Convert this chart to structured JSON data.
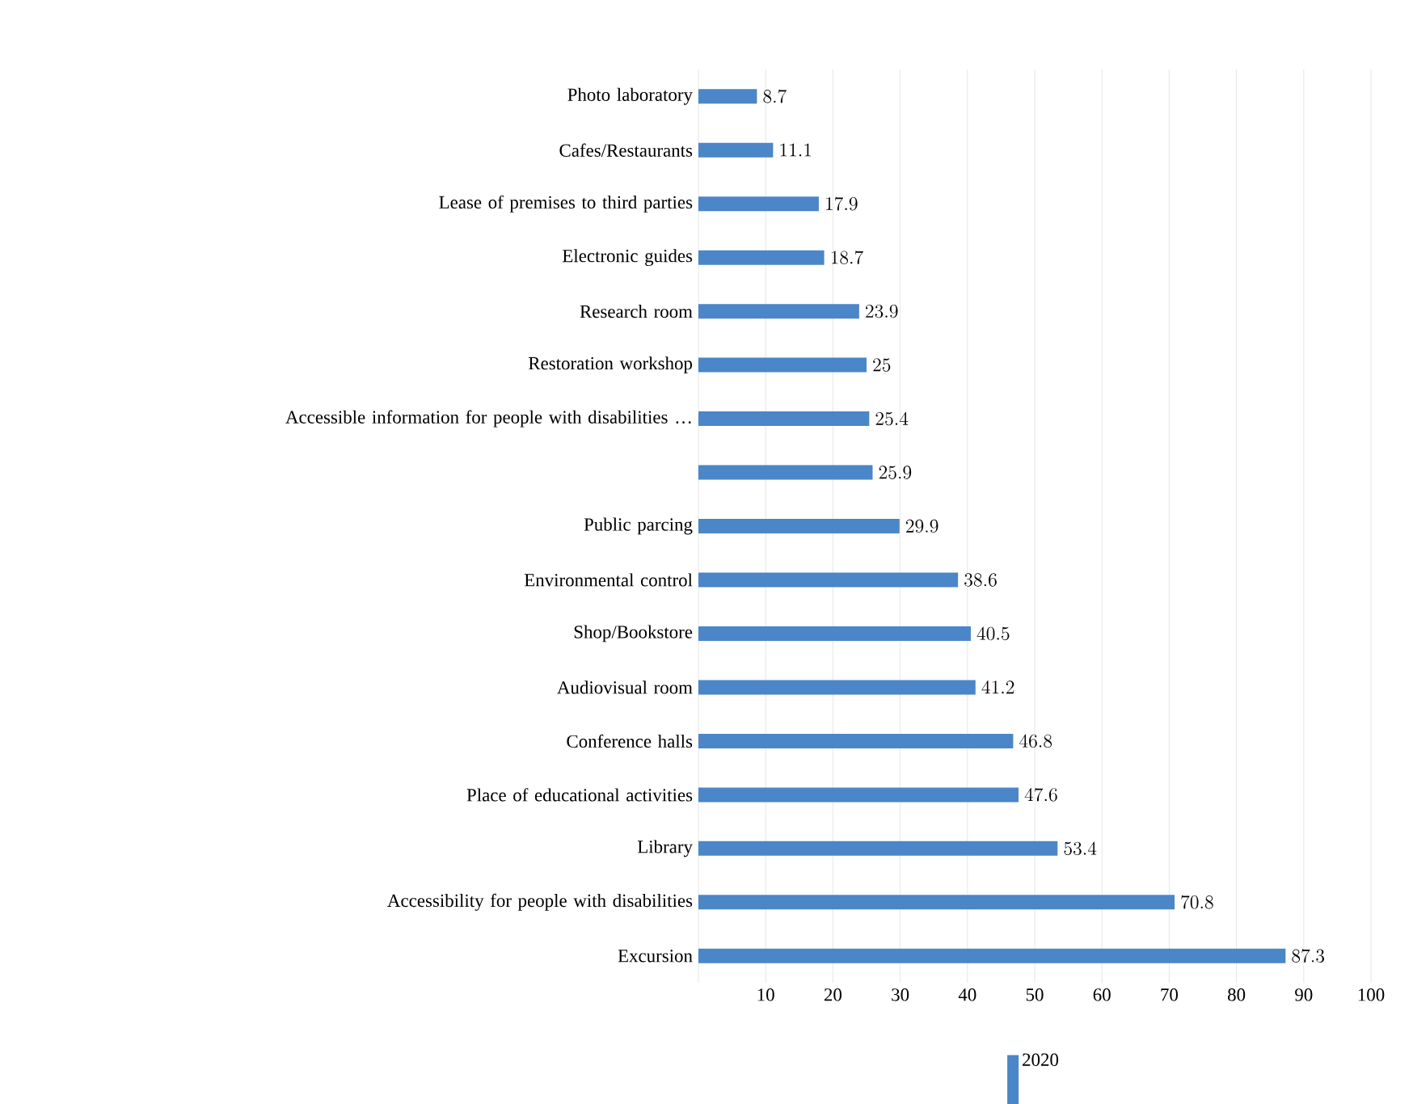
{
  "chart_data": {
    "type": "bar",
    "orientation": "horizontal",
    "categories": [
      "Photo laboratory",
      "Cafes/Restaurants",
      "Lease of premises to third parties",
      "Electronic guides",
      "Research room",
      "Restoration workshop",
      "Accessible information for people with disabilities …",
      null,
      "Public parcing",
      "Environmental control",
      "Shop/Bookstore",
      "Audiovisual room",
      "Conference halls",
      "Place of educational activities",
      "Library",
      "Accessibility for people with disabilities",
      "Excursion"
    ],
    "series": [
      {
        "name": "2020",
        "color": "#4a86c8",
        "values": [
          8.7,
          11.1,
          17.9,
          18.7,
          23.9,
          25,
          25.4,
          25.9,
          29.9,
          38.6,
          40.5,
          41.2,
          46.8,
          47.6,
          53.4,
          70.8,
          87.3
        ]
      }
    ],
    "xlim": [
      0,
      100
    ],
    "xticks": [
      {
        "value": 0,
        "label": null
      },
      10,
      20,
      30,
      40,
      50,
      60,
      70,
      80,
      90,
      100
    ],
    "grid": "x",
    "data_labels": true,
    "legend": "bottom"
  }
}
